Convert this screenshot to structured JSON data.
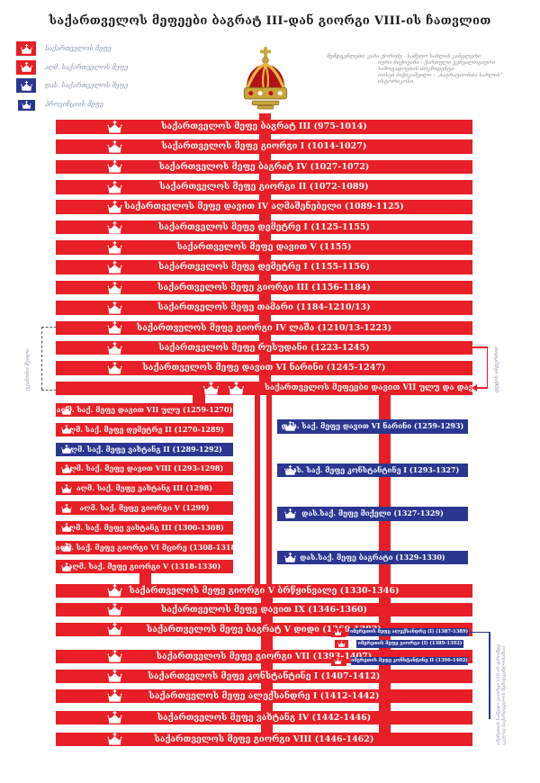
{
  "title": "საქართველოს მეფეები ბაგრატ III-დან გიორგი VIII-ის ჩათვლით",
  "legend": {
    "items": [
      {
        "label": "საქართველოს მეფე",
        "color": "red",
        "size": "large"
      },
      {
        "label": "აღმ. საქართველოს მეფე",
        "color": "red",
        "size": "large"
      },
      {
        "label": "დას. საქართველოს მეფე",
        "color": "blue",
        "size": "large"
      },
      {
        "label": "პროვინციის მეფე",
        "color": "blue",
        "size": "small"
      }
    ]
  },
  "credits": {
    "lines": [
      "შემდგენლები: კახა ქორიძე - სამეფო სახლის კანცლერი",
      "იური ჩიქოვანი - ქართული გენეალოგიური",
      "საზოგადოების პრეზიდენტი",
      "იოსებ ბიჭიკაშვილი - „ბაგრატიონთა სახლის“",
      "ისტორიკოსი."
    ]
  },
  "annotations": {
    "left_bracket_label": "უკანონო შვილი",
    "right_bracket_label": "დედის ანდერძით",
    "imereti_note_lines": [
      "იმერეთის სამეფო გიორგი VIII-ის დრომდე",
      "(კვლავ საქართველოს შემადგენლობაშია)"
    ]
  },
  "colors": {
    "red": "#e81f26",
    "blue": "#2b3690",
    "title_text": "#1b1b1b",
    "legend_text": "#8a97ae",
    "credits_text": "#8f8f8f",
    "annotation_text": "#8a97ae",
    "bracket_dash": "#555555",
    "crown_gold": "#caa53d",
    "crown_red": "#b3121a"
  },
  "chart_data": {
    "type": "table",
    "sections": {
      "kings_of_georgia_early": [
        {
          "name": "საქართველოს მეფე ბაგრატ III",
          "years": "975-1014",
          "color": "red",
          "crowns": 1
        },
        {
          "name": "საქართველოს მეფე გიორგი I",
          "years": "1014-1027",
          "color": "red",
          "crowns": 1
        },
        {
          "name": "საქართველოს მეფე ბაგრატ IV",
          "years": "1027-1072",
          "color": "red",
          "crowns": 1
        },
        {
          "name": "საქართველოს მეფე გიორგი II",
          "years": "1072-1089",
          "color": "red",
          "crowns": 1
        },
        {
          "name": "საქართველოს მეფე დავით IV აღმაშენებელი",
          "years": "1089-1125",
          "color": "red",
          "crowns": 1
        },
        {
          "name": "საქართველოს მეფე დემეტრე I",
          "years": "1125-1155",
          "color": "red",
          "crowns": 1
        },
        {
          "name": "საქართველოს მეფე დავით V",
          "years": "1155",
          "color": "red",
          "crowns": 1
        },
        {
          "name": "საქართველოს მეფე დემეტრე I",
          "years": "1155-1156",
          "color": "red",
          "crowns": 1
        },
        {
          "name": "საქართველოს მეფე გიორგი III",
          "years": "1156-1184",
          "color": "red",
          "crowns": 1
        },
        {
          "name": "საქართველოს მეფე თამარი",
          "years": "1184-1210/13",
          "color": "red",
          "crowns": 1
        },
        {
          "name": "საქართველოს მეფე გიორგი IV ლაშა",
          "years": "1210/13-1223",
          "color": "red",
          "crowns": 1
        },
        {
          "name": "საქართველოს მეფე რუსუდანი",
          "years": "1223-1245",
          "color": "red",
          "crowns": 1
        },
        {
          "name": "საქართველოს მეფე დავით VI ნარინი",
          "years": "1245-1247",
          "color": "red",
          "crowns": 1
        },
        {
          "name": "საქართველოს მეფეები დავით VII ულუ და დავით VI ნარინი",
          "years": "1247-1259",
          "color": "red",
          "crowns": 2
        }
      ],
      "kings_of_eastern_georgia": [
        {
          "name": "აღმ. საქ. მეფე დავით VII ულუ",
          "years": "1259-1270",
          "color": "red",
          "crowns": 1
        },
        {
          "name": "აღმ. საქ. მეფე დემეტრე II",
          "years": "1270-1289",
          "color": "red",
          "crowns": 1
        },
        {
          "name": "აღმ. საქ. მეფე ვახტანგ II",
          "years": "1289-1292",
          "color": "blue",
          "crowns": 1
        },
        {
          "name": "აღმ. საქ. მეფე დავით VIII",
          "years": "1293-1298",
          "color": "red",
          "crowns": 1
        },
        {
          "name": "აღმ. საქ. მეფე ვახტანგ III",
          "years": "1298",
          "color": "red",
          "crowns": 1
        },
        {
          "name": "აღმ. საქ. მეფე გიორგი V",
          "years": "1299",
          "color": "red",
          "crowns": 1
        },
        {
          "name": "აღმ. საქ. მეფე ვახტანგ III",
          "years": "1300-1308",
          "color": "red",
          "crowns": 1
        },
        {
          "name": "აღმ. საქ. მეფე გიორგი VI მცირე",
          "years": "1308-1318",
          "color": "red",
          "crowns": 1
        },
        {
          "name": "აღმ. საქ. მეფე გიორგი V",
          "years": "1318-1330",
          "color": "red",
          "crowns": 1
        }
      ],
      "kings_of_western_georgia": [
        {
          "name": "დას. საქ. მეფე დავით VI ნარინი",
          "years": "1259-1293",
          "color": "blue",
          "crowns": 1
        },
        {
          "name": "დას. საქ. მეფე კონსტანტინე I",
          "years": "1293-1327",
          "color": "blue",
          "crowns": 1
        },
        {
          "name": "დას.საქ. მეფე მიქელი",
          "years": "1327-1329",
          "color": "blue",
          "crowns": 1
        },
        {
          "name": "დას.საქ. მეფე ბაგრატი",
          "years": "1329-1330",
          "color": "blue",
          "crowns": 1
        }
      ],
      "kings_of_georgia_late": [
        {
          "name": "საქართველოს მეფე გიორგი V ბრწყინვალე",
          "years": "1330-1346",
          "color": "red",
          "crowns": 1
        },
        {
          "name": "საქართველოს მეფე დავით IX",
          "years": "1346-1360",
          "color": "red",
          "crowns": 1
        },
        {
          "name": "საქართველოს მეფე ბაგრატ V დიდი",
          "years": "1360-1393",
          "color": "red",
          "crowns": 1
        },
        {
          "name": "საქართველოს მეფე გიორგი VII",
          "years": "1393-1407",
          "color": "red",
          "crowns": 1
        },
        {
          "name": "საქართველოს მეფე კონსტანტინე I",
          "years": "1407-1412",
          "color": "red",
          "crowns": 1
        },
        {
          "name": "საქართველოს მეფე ალექსანდრე I",
          "years": "1412-1442",
          "color": "red",
          "crowns": 1
        },
        {
          "name": "საქართველოს მეფე ვახტანგ IV",
          "years": "1442-1446",
          "color": "red",
          "crowns": 1
        },
        {
          "name": "საქართველოს მეფე გიორგი VIII",
          "years": "1446-1462",
          "color": "red",
          "crowns": 1
        }
      ],
      "kings_of_imereti": [
        {
          "name": "იმერეთის მეფე ალექსანდრე (I)",
          "years": "1387-1389",
          "color": "blue",
          "crowns": 1
        },
        {
          "name": "იმერეთის მეფე გიორგი (I)",
          "years": "1389-1392",
          "color": "blue",
          "crowns": 1
        },
        {
          "name": "იმერეთის მეფე კონსტანტინე II",
          "years": "1396-1402",
          "color": "blue",
          "crowns": 1
        }
      ]
    }
  }
}
